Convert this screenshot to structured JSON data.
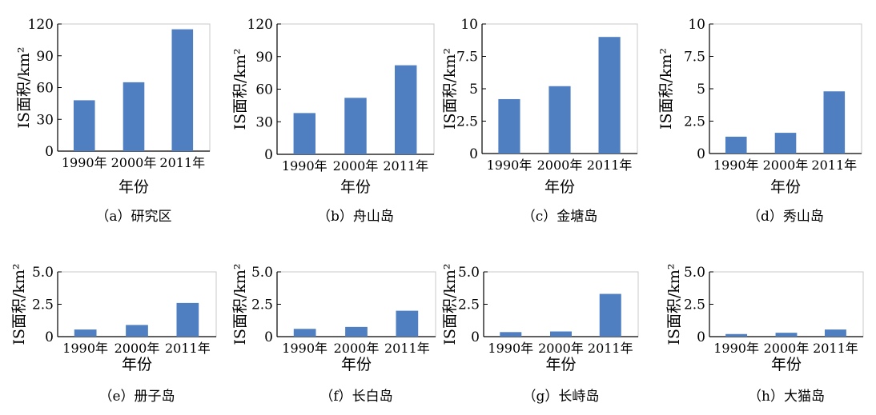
{
  "figure": {
    "bar_color": "#4f7fc0",
    "xlabel": "年份",
    "ylabel_base": "IS面积/km",
    "ylabel_sup": "2"
  },
  "chart_data": [
    {
      "type": "bar",
      "title": "（a）研究区",
      "xlabel": "年份",
      "ylabel": "IS面积/km²",
      "categories": [
        "1990年",
        "2000年",
        "2011年"
      ],
      "values": [
        48,
        65,
        115
      ],
      "ylim": [
        0,
        120
      ],
      "yticks": [
        "0",
        "30",
        "60",
        "90",
        "120"
      ]
    },
    {
      "type": "bar",
      "title": "（b）舟山岛",
      "xlabel": "年份",
      "ylabel": "IS面积/km²",
      "categories": [
        "1990年",
        "2000年",
        "2011年"
      ],
      "values": [
        38,
        52,
        82
      ],
      "ylim": [
        0,
        120
      ],
      "yticks": [
        "0",
        "30",
        "60",
        "90",
        "120"
      ]
    },
    {
      "type": "bar",
      "title": "（c）金塘岛",
      "xlabel": "年份",
      "ylabel": "IS面积/km²",
      "categories": [
        "1990年",
        "2000年",
        "2011年"
      ],
      "values": [
        4.2,
        5.2,
        9.0
      ],
      "ylim": [
        0,
        10
      ],
      "yticks": [
        "0",
        "2.5",
        "5",
        "7.5",
        "10"
      ]
    },
    {
      "type": "bar",
      "title": "（d）秀山岛",
      "xlabel": "年份",
      "ylabel": "IS面积/km²",
      "categories": [
        "1990年",
        "2000年",
        "2011年"
      ],
      "values": [
        1.3,
        1.6,
        4.8
      ],
      "ylim": [
        0,
        10
      ],
      "yticks": [
        "0",
        "2.5",
        "5",
        "7.5",
        "10"
      ]
    },
    {
      "type": "bar",
      "title": "（e）册子岛",
      "xlabel": "年份",
      "ylabel": "IS面积/km²",
      "categories": [
        "1990年",
        "2000年",
        "2011年"
      ],
      "values": [
        0.55,
        0.9,
        2.6
      ],
      "ylim": [
        0,
        5
      ],
      "yticks": [
        "0",
        "2.5",
        "5.0"
      ]
    },
    {
      "type": "bar",
      "title": "（f）长白岛",
      "xlabel": "年份",
      "ylabel": "IS面积/km²",
      "categories": [
        "1990年",
        "2000年",
        "2011年"
      ],
      "values": [
        0.6,
        0.75,
        2.0
      ],
      "ylim": [
        0,
        5
      ],
      "yticks": [
        "0",
        "2.5",
        "5.0"
      ]
    },
    {
      "type": "bar",
      "title": "（g）长峙岛",
      "xlabel": "年份",
      "ylabel": "IS面积/km²",
      "categories": [
        "1990年",
        "2000年",
        "2011年"
      ],
      "values": [
        0.35,
        0.4,
        3.3
      ],
      "ylim": [
        0,
        5
      ],
      "yticks": [
        "0",
        "2.5",
        "5.0"
      ]
    },
    {
      "type": "bar",
      "title": "（h）大猫岛",
      "xlabel": "年份",
      "ylabel": "IS面积/km²",
      "categories": [
        "1990年",
        "2000年",
        "2011年"
      ],
      "values": [
        0.2,
        0.3,
        0.55
      ],
      "ylim": [
        0,
        5
      ],
      "yticks": [
        "0",
        "2.5",
        "5.0"
      ]
    }
  ]
}
